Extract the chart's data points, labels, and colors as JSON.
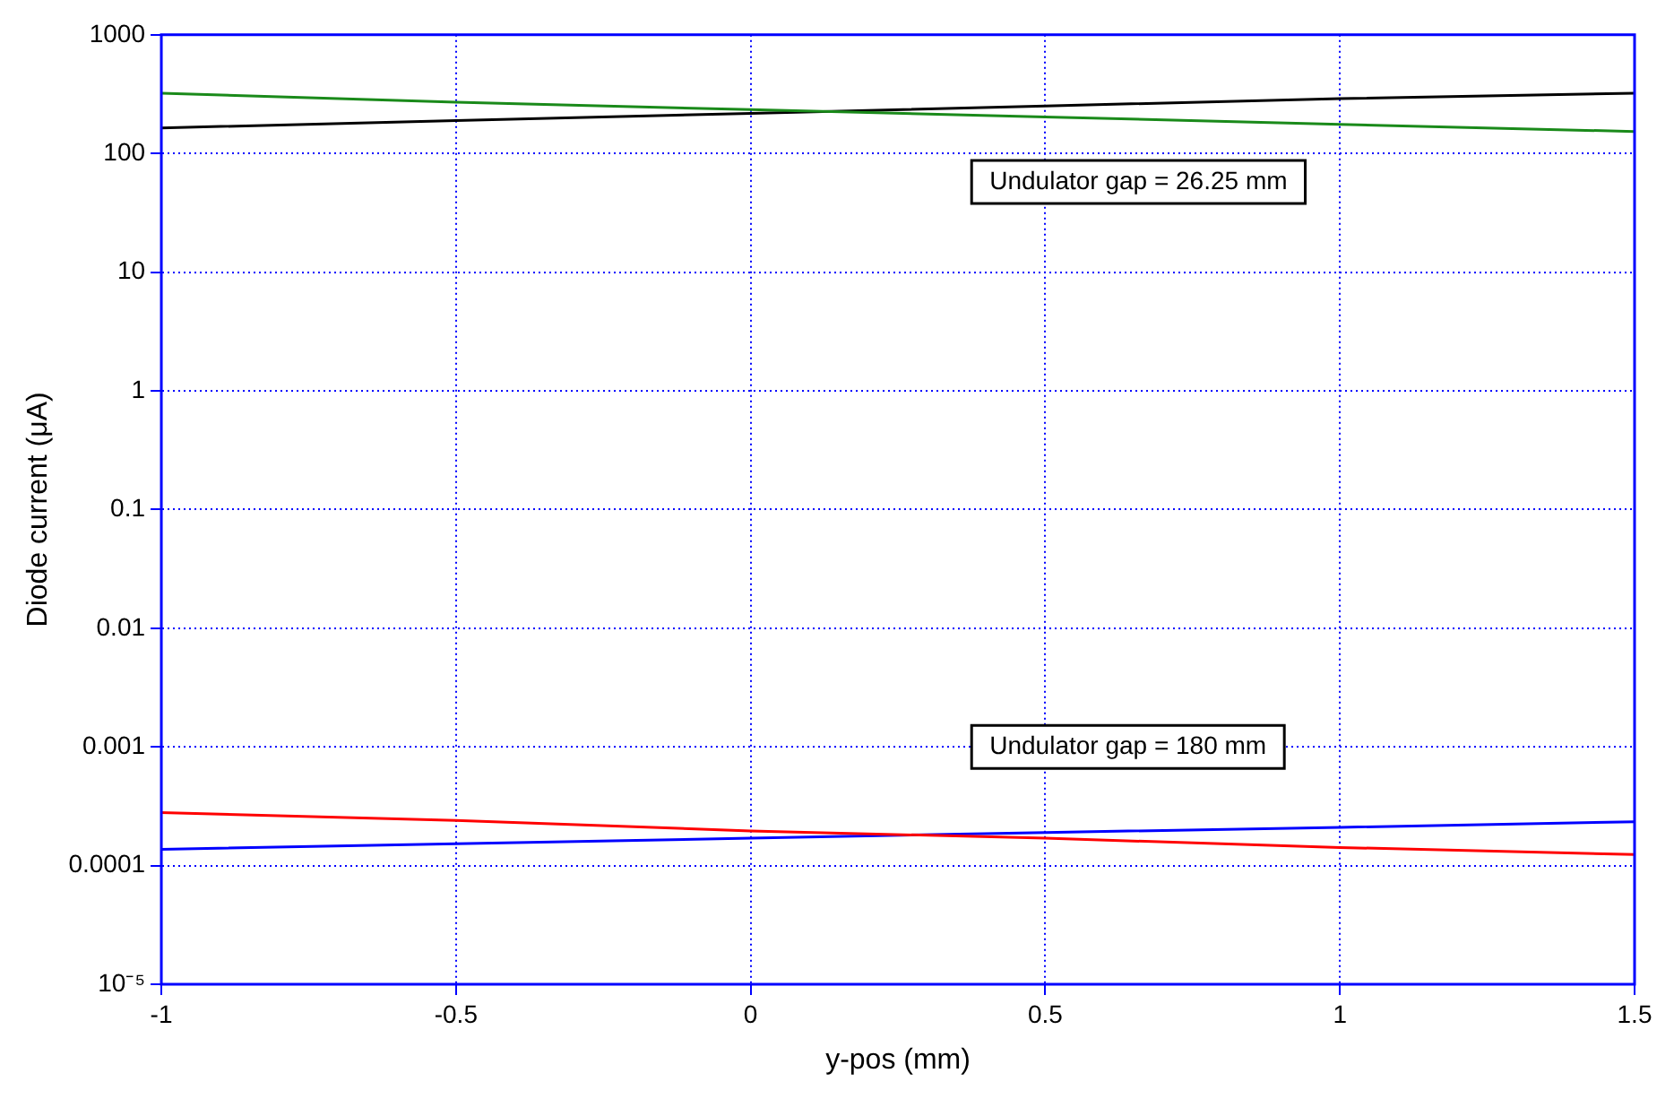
{
  "chart_data": {
    "type": "line",
    "xlabel": "y-pos (mm)",
    "ylabel": "Diode current (μA)",
    "log": "y",
    "grid": true,
    "legend": false,
    "marker": "none",
    "line_style": "solid",
    "xlim": [
      -1,
      1.5
    ],
    "xticks": [
      -1,
      -0.5,
      0,
      0.5,
      1,
      1.5
    ],
    "ylim": [
      1e-05,
      1000
    ],
    "yticks": [
      {
        "value": 1e-05,
        "label": "10⁻⁵"
      },
      0.0001,
      0.001,
      0.01,
      0.1,
      1,
      10,
      100,
      1000
    ],
    "x": [
      -1,
      -0.5,
      0,
      0.5,
      1,
      1.5
    ],
    "series": [
      {
        "color": "#1a8a1a",
        "values": [
          322,
          270,
          234,
          203,
          176,
          153
        ]
      },
      {
        "color": "#000000",
        "values": [
          164,
          189,
          218,
          251,
          290,
          322
        ]
      },
      {
        "color": "#ff0000",
        "values": [
          0.00028,
          0.00024,
          0.000196,
          0.00017,
          0.000142,
          0.000124
        ]
      },
      {
        "color": "#0000ff",
        "values": [
          0.000137,
          0.000153,
          0.00017,
          0.00019,
          0.00021,
          0.000234
        ]
      }
    ],
    "annotations": [
      "Undulator gap = 26.25 mm",
      "Undulator gap = 180 mm"
    ]
  }
}
